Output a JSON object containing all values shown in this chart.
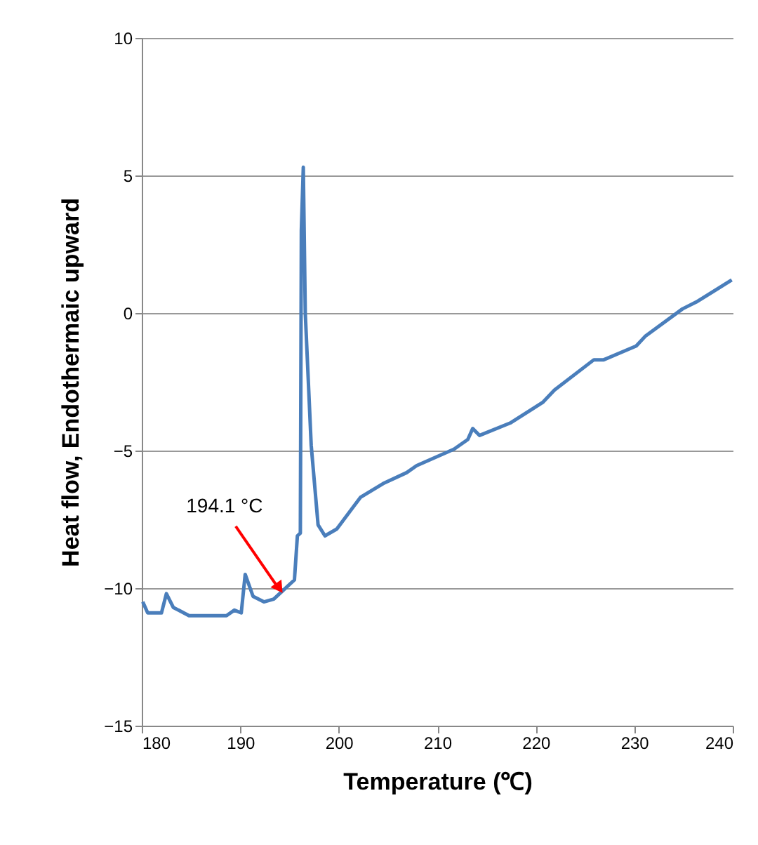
{
  "chart_data": {
    "type": "line",
    "xlabel": "Temperature (℃)",
    "ylabel": "Heat flow, Endothermaic upward",
    "xlim": [
      180,
      240
    ],
    "xticks": [
      180,
      190,
      200,
      210,
      220,
      230,
      240
    ],
    "ylim": [
      -15,
      10
    ],
    "yticks": [
      -15,
      -10,
      -5,
      0,
      5,
      10
    ],
    "grid": "y",
    "marker": "none",
    "line_style": "solid",
    "series": [
      {
        "color": "#4a7ebb",
        "x": [
          180.1,
          180.6,
          182.0,
          182.5,
          183.2,
          184.8,
          188.6,
          189.4,
          190.1,
          190.5,
          191.3,
          192.4,
          193.4,
          194.3,
          195.5,
          195.8,
          196.1,
          196.2,
          196.4,
          196.6,
          197.2,
          197.9,
          198.6,
          199.8,
          202.2,
          204.5,
          206.9,
          207.9,
          211.7,
          213.1,
          213.6,
          214.3,
          217.4,
          220.7,
          221.9,
          225.9,
          226.9,
          230.2,
          231.1,
          234.9,
          236.3,
          239.9
        ],
        "values": [
          -10.5,
          -10.9,
          -10.9,
          -10.2,
          -10.7,
          -11.0,
          -11.0,
          -10.8,
          -10.9,
          -9.5,
          -10.3,
          -10.5,
          -10.4,
          -10.1,
          -9.7,
          -8.1,
          -8.0,
          3.0,
          5.3,
          0.0,
          -4.8,
          -7.7,
          -8.1,
          -7.85,
          -6.7,
          -6.2,
          -5.8,
          -5.55,
          -4.95,
          -4.6,
          -4.2,
          -4.45,
          -4.0,
          -3.25,
          -2.8,
          -1.7,
          -1.7,
          -1.2,
          -0.85,
          0.15,
          0.4,
          1.2
        ]
      }
    ],
    "annotations": [
      {
        "text": "194.1 °C",
        "x": 194.1,
        "y": -10.1
      }
    ]
  }
}
